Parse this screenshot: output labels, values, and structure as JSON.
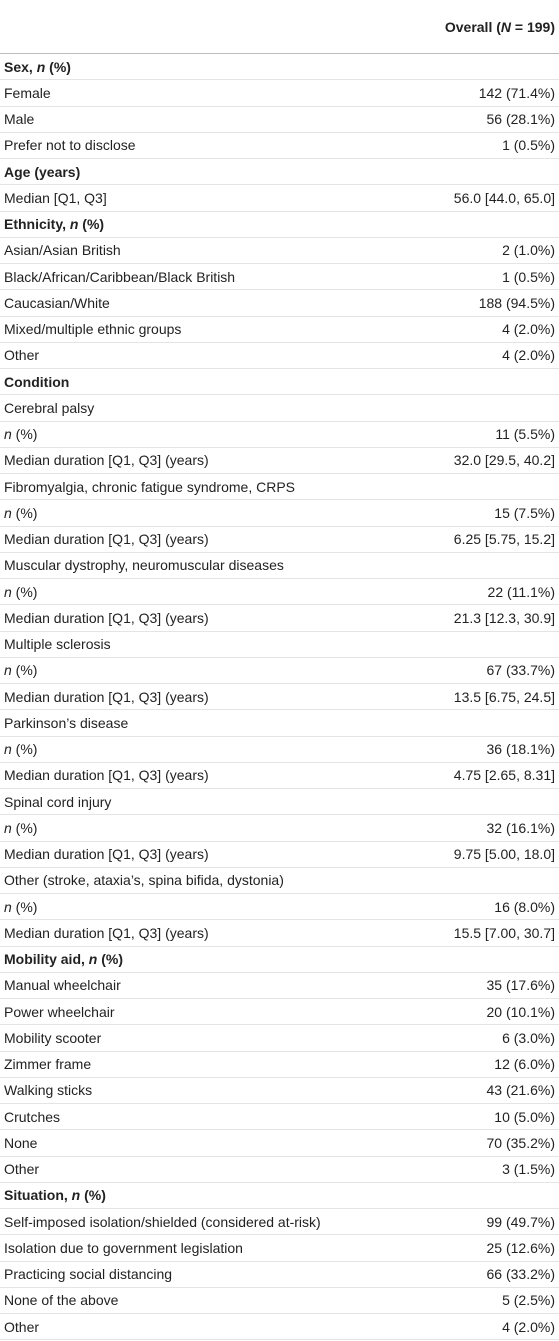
{
  "header": [
    "Overall (",
    "N",
    " = 199)"
  ],
  "sections": [
    {
      "title": [
        "Sex, ",
        "n",
        " (%)"
      ],
      "rows": [
        {
          "label": "Female",
          "value": "142 (71.4%)"
        },
        {
          "label": "Male",
          "value": "56 (28.1%)"
        },
        {
          "label": "Prefer not to disclose",
          "value": "1 (0.5%)"
        }
      ]
    },
    {
      "title": "Age (years)",
      "rows": [
        {
          "label": "Median [Q1, Q3]",
          "value": "56.0 [44.0, 65.0]"
        }
      ]
    },
    {
      "title": [
        "Ethnicity, ",
        "n",
        " (%)"
      ],
      "rows": [
        {
          "label": "Asian/Asian British",
          "value": "2 (1.0%)"
        },
        {
          "label": "Black/African/Caribbean/Black British",
          "value": "1 (0.5%)"
        },
        {
          "label": "Caucasian/White",
          "value": "188 (94.5%)"
        },
        {
          "label": "Mixed/multiple ethnic groups",
          "value": "4 (2.0%)"
        },
        {
          "label": "Other",
          "value": "4 (2.0%)"
        }
      ]
    },
    {
      "title": "Condition",
      "rows": [
        {
          "label": "Cerebral palsy"
        },
        {
          "label": [
            "",
            "n",
            " (%)"
          ],
          "value": "11 (5.5%)"
        },
        {
          "label": "Median duration [Q1, Q3] (years)",
          "value": "32.0 [29.5, 40.2]"
        },
        {
          "label": "Fibromyalgia, chronic fatigue syndrome, CRPS"
        },
        {
          "label": [
            "",
            "n",
            " (%)"
          ],
          "value": "15 (7.5%)"
        },
        {
          "label": "Median duration [Q1, Q3] (years)",
          "value": "6.25 [5.75, 15.2]"
        },
        {
          "label": "Muscular dystrophy, neuromuscular diseases"
        },
        {
          "label": [
            "",
            "n",
            " (%)"
          ],
          "value": "22 (11.1%)"
        },
        {
          "label": "Median duration [Q1, Q3] (years)",
          "value": "21.3 [12.3, 30.9]"
        },
        {
          "label": "Multiple sclerosis"
        },
        {
          "label": [
            "",
            "n",
            " (%)"
          ],
          "value": "67 (33.7%)"
        },
        {
          "label": "Median duration [Q1, Q3] (years)",
          "value": "13.5 [6.75, 24.5]"
        },
        {
          "label": "Parkinson’s disease"
        },
        {
          "label": [
            "",
            "n",
            " (%)"
          ],
          "value": "36 (18.1%)"
        },
        {
          "label": "Median duration [Q1, Q3] (years)",
          "value": "4.75 [2.65, 8.31]"
        },
        {
          "label": "Spinal cord injury"
        },
        {
          "label": [
            "",
            "n",
            " (%)"
          ],
          "value": "32 (16.1%)"
        },
        {
          "label": "Median duration [Q1, Q3] (years)",
          "value": "9.75 [5.00, 18.0]"
        },
        {
          "label": "Other (stroke, ataxia’s, spina bifida, dystonia)"
        },
        {
          "label": [
            "",
            "n",
            " (%)"
          ],
          "value": "16 (8.0%)"
        },
        {
          "label": "Median duration [Q1, Q3] (years)",
          "value": "15.5 [7.00, 30.7]"
        }
      ]
    },
    {
      "title": [
        "Mobility aid, ",
        "n",
        " (%)"
      ],
      "rows": [
        {
          "label": "Manual wheelchair",
          "value": "35 (17.6%)"
        },
        {
          "label": "Power wheelchair",
          "value": "20 (10.1%)"
        },
        {
          "label": "Mobility scooter",
          "value": "6 (3.0%)"
        },
        {
          "label": "Zimmer frame",
          "value": "12 (6.0%)"
        },
        {
          "label": "Walking sticks",
          "value": "43 (21.6%)"
        },
        {
          "label": "Crutches",
          "value": "10 (5.0%)"
        },
        {
          "label": "None",
          "value": "70 (35.2%)"
        },
        {
          "label": "Other",
          "value": "3 (1.5%)"
        }
      ]
    },
    {
      "title": [
        "Situation, ",
        "n",
        " (%)"
      ],
      "rows": [
        {
          "label": "Self-imposed isolation/shielded (considered at-risk)",
          "value": "99 (49.7%)"
        },
        {
          "label": "Isolation due to government legislation",
          "value": "25 (12.6%)"
        },
        {
          "label": "Practicing social distancing",
          "value": "66 (33.2%)"
        },
        {
          "label": "None of the above",
          "value": "5 (2.5%)"
        },
        {
          "label": "Other",
          "value": "4 (2.0%)"
        }
      ]
    }
  ]
}
